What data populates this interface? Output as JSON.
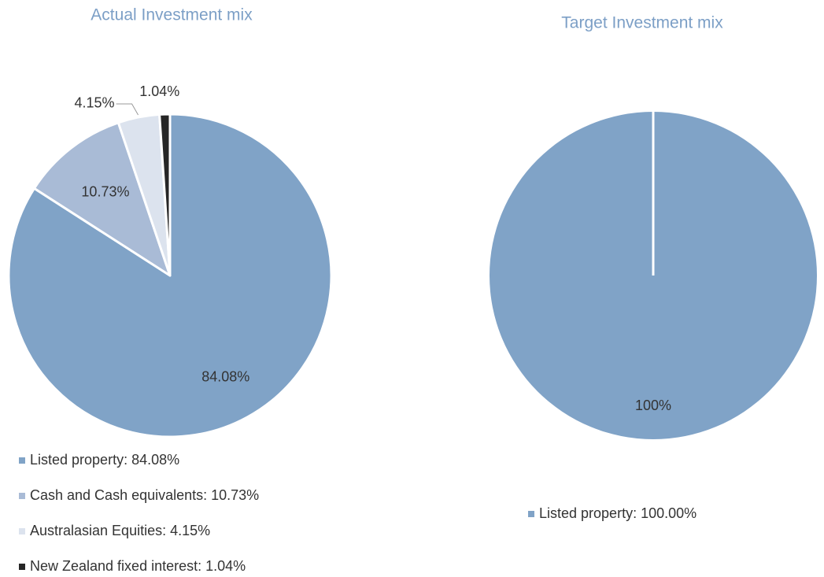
{
  "chart_data": [
    {
      "type": "pie",
      "title": "Actual Investment mix",
      "categories": [
        "Listed property: 84.08%",
        "Cash and Cash equivalents: 10.73%",
        "Australasian Equities: 4.15%",
        "New Zealand fixed interest: 1.04%"
      ],
      "values": [
        84.08,
        10.73,
        4.15,
        1.04
      ],
      "value_labels": [
        "84.08%",
        "10.73%",
        "4.15%",
        "1.04%"
      ],
      "colors": [
        "#80a3c7",
        "#a9bbd6",
        "#dce3ee",
        "#262626"
      ]
    },
    {
      "type": "pie",
      "title": "Target Investment mix",
      "categories": [
        "Listed property: 100.00%"
      ],
      "values": [
        100
      ],
      "value_labels": [
        "100%"
      ],
      "colors": [
        "#80a3c7"
      ]
    }
  ]
}
